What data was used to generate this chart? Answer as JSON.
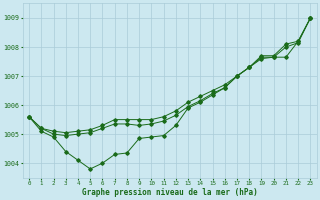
{
  "xlabel": "Graphe pression niveau de la mer (hPa)",
  "x": [
    0,
    1,
    2,
    3,
    4,
    5,
    6,
    7,
    8,
    9,
    10,
    11,
    12,
    13,
    14,
    15,
    16,
    17,
    18,
    19,
    20,
    21,
    22,
    23
  ],
  "line1": [
    1005.6,
    1005.2,
    1005.1,
    1005.05,
    1005.1,
    1005.15,
    1005.3,
    1005.5,
    1005.5,
    1005.5,
    1005.5,
    1005.6,
    1005.8,
    1006.1,
    1006.3,
    1006.5,
    1006.7,
    1007.0,
    1007.3,
    1007.7,
    1007.7,
    1008.1,
    1008.2,
    1009.0
  ],
  "line2": [
    1005.6,
    1005.2,
    1005.0,
    1004.95,
    1005.0,
    1005.05,
    1005.2,
    1005.35,
    1005.35,
    1005.3,
    1005.35,
    1005.45,
    1005.65,
    1005.95,
    1006.15,
    1006.4,
    1006.6,
    1007.0,
    1007.3,
    1007.65,
    1007.65,
    1008.0,
    1008.15,
    1009.0
  ],
  "line3": [
    1005.6,
    1005.1,
    1004.9,
    1004.4,
    1004.1,
    1003.8,
    1004.0,
    1004.3,
    1004.35,
    1004.85,
    1004.9,
    1004.95,
    1005.3,
    1005.9,
    1006.1,
    1006.35,
    1006.6,
    1007.0,
    1007.3,
    1007.6,
    1007.65,
    1007.65,
    1008.2,
    1009.0
  ],
  "bg_color": "#cce8f0",
  "grid_color": "#aaccd8",
  "line_color": "#1a6b1a",
  "tick_color": "#1a6b1a",
  "label_color": "#1a6b1a",
  "ylim_min": 1003.5,
  "ylim_max": 1009.5,
  "yticks": [
    1004,
    1005,
    1006,
    1007,
    1008,
    1009
  ]
}
